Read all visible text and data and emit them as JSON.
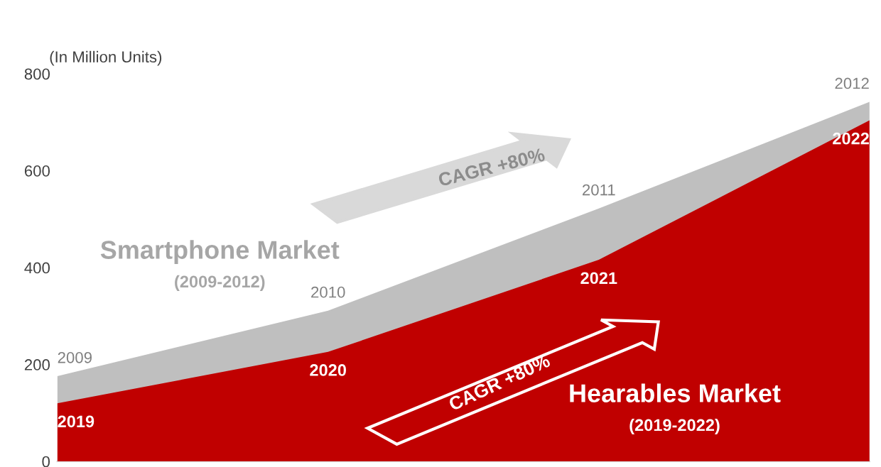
{
  "chart_data": {
    "type": "area",
    "ylabel": "(In Million Units)",
    "categories": [
      null,
      null,
      null,
      null
    ],
    "series": [
      {
        "name": "Smartphone Market",
        "color": "#bfbfbf",
        "values": [
          176,
          311,
          522,
          742
        ]
      },
      {
        "name": "Hearables Market",
        "color": "#c00000",
        "values": [
          120,
          226,
          416,
          704
        ]
      }
    ],
    "annotations": [
      "(2009-2012)",
      "(2019-2022)",
      "CAGR +80%",
      "CAGR +80%",
      "2009",
      "2010",
      "2011",
      "2012",
      "2019",
      "2020",
      "2021",
      "2022"
    ],
    "ylim": [
      0,
      800
    ],
    "yticks": [
      0,
      200,
      400,
      600,
      800
    ],
    "grid": false,
    "legend": false
  }
}
